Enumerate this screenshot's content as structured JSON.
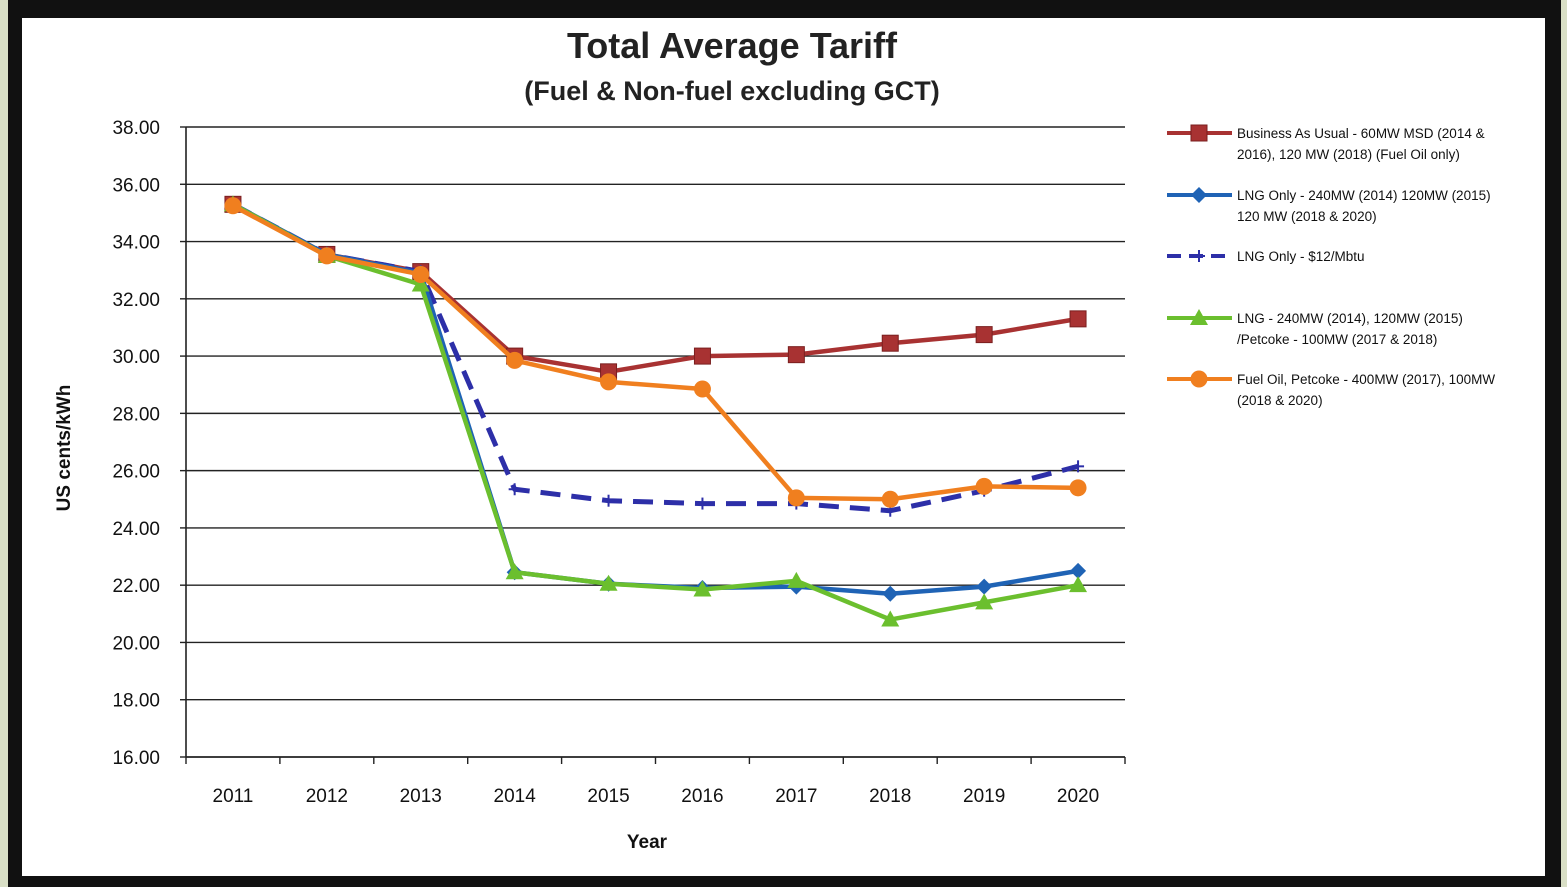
{
  "chart_data": {
    "type": "line",
    "title": "Total Average Tariff",
    "subtitle": "(Fuel & Non-fuel excluding GCT)",
    "xlabel": "Year",
    "ylabel": "US cents/kWh",
    "x": [
      "2011",
      "2012",
      "2013",
      "2014",
      "2015",
      "2016",
      "2017",
      "2018",
      "2019",
      "2020"
    ],
    "ylim": [
      16,
      38
    ],
    "yticks": [
      "16.00",
      "18.00",
      "20.00",
      "22.00",
      "24.00",
      "26.00",
      "28.00",
      "30.00",
      "32.00",
      "34.00",
      "36.00",
      "38.00"
    ],
    "grid": true,
    "legend_position": "right",
    "series": [
      {
        "name": "Business As Usual - 60MW MSD (2014 & 2016), 120 MW (2018) (Fuel Oil only)",
        "legend_lines": [
          "Business As Usual - 60MW MSD (2014 &",
          "2016), 120 MW (2018) (Fuel Oil only)"
        ],
        "color": "#a83232",
        "marker": "square",
        "dash": false,
        "values": [
          35.3,
          33.55,
          32.95,
          30.0,
          29.45,
          30.0,
          30.05,
          30.45,
          30.75,
          31.3
        ]
      },
      {
        "name": "LNG Only - 240MW (2014) 120MW (2015) 120 MW (2018 & 2020)",
        "legend_lines": [
          "LNG Only - 240MW (2014) 120MW (2015)",
          "120 MW (2018 & 2020)"
        ],
        "color": "#1f63b5",
        "marker": "diamond",
        "dash": false,
        "values": [
          35.3,
          33.55,
          32.9,
          22.45,
          22.05,
          21.9,
          21.95,
          21.7,
          21.95,
          22.5
        ]
      },
      {
        "name": "LNG Only - $12/Mbtu",
        "legend_lines": [
          "LNG Only - $12/Mbtu"
        ],
        "color": "#2d2fa8",
        "marker": "plus",
        "dash": true,
        "values": [
          35.3,
          33.55,
          32.95,
          25.35,
          24.95,
          24.85,
          24.85,
          24.6,
          25.3,
          26.15
        ]
      },
      {
        "name": "LNG - 240MW (2014), 120MW (2015) /Petcoke - 100MW (2017 & 2018)",
        "legend_lines": [
          "LNG - 240MW (2014),  120MW (2015)",
          "/Petcoke - 100MW (2017 & 2018)"
        ],
        "color": "#6bbf2e",
        "marker": "triangle",
        "dash": false,
        "values": [
          35.3,
          33.5,
          32.5,
          22.45,
          22.05,
          21.85,
          22.15,
          20.8,
          21.4,
          22.0
        ]
      },
      {
        "name": "Fuel Oil, Petcoke - 400MW (2017), 100MW (2018 & 2020)",
        "legend_lines": [
          "Fuel Oil, Petcoke - 400MW (2017), 100MW",
          "(2018 & 2020)"
        ],
        "color": "#f07f1f",
        "marker": "circle",
        "dash": false,
        "values": [
          35.25,
          33.5,
          32.85,
          29.85,
          29.1,
          28.85,
          25.05,
          25.0,
          25.45,
          25.4
        ]
      }
    ]
  }
}
